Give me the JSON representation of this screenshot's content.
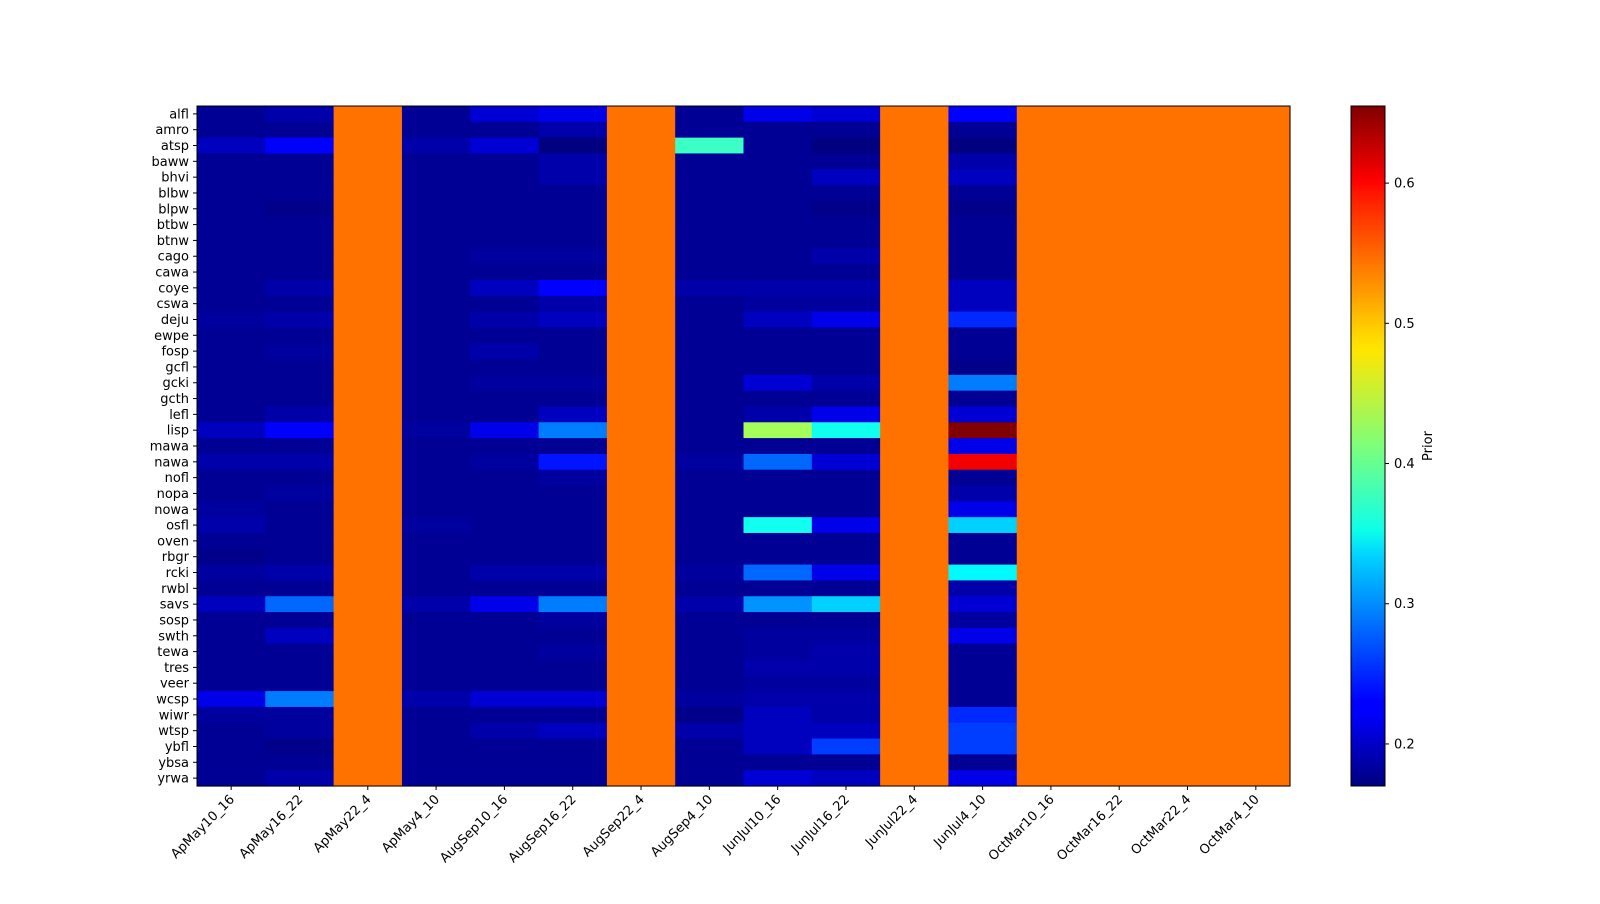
{
  "chart_data": {
    "type": "heatmap",
    "title": "",
    "xlabel": "",
    "ylabel": "",
    "colormap": "jet",
    "colorbar": {
      "label": "Prior",
      "vmin": 0.17,
      "vmax": 0.655,
      "ticks": [
        "0.2",
        "0.3",
        "0.4",
        "0.5",
        "0.6"
      ]
    },
    "x_labels": [
      "ApMay10_16",
      "ApMay16_22",
      "ApMay22_4",
      "ApMay4_10",
      "AugSep10_16",
      "AugSep16_22",
      "AugSep22_4",
      "AugSep4_10",
      "JunJul10_16",
      "JunJul16_22",
      "JunJul22_4",
      "JunJul4_10",
      "OctMar10_16",
      "OctMar16_22",
      "OctMar22_4",
      "OctMar4_10"
    ],
    "y_labels": [
      "alfl",
      "amro",
      "atsp",
      "baww",
      "bhvi",
      "blbw",
      "blpw",
      "btbw",
      "btnw",
      "cago",
      "cawa",
      "coye",
      "cswa",
      "deju",
      "ewpe",
      "fosp",
      "gcfl",
      "gcki",
      "gcth",
      "lefl",
      "lisp",
      "mawa",
      "nawa",
      "nofl",
      "nopa",
      "nowa",
      "osfl",
      "oven",
      "rbgr",
      "rcki",
      "rwbl",
      "savs",
      "sosp",
      "swth",
      "tewa",
      "tres",
      "veer",
      "wcsp",
      "wiwr",
      "wtsp",
      "ybfl",
      "ybsa",
      "yrwa"
    ],
    "values": [
      [
        0.18,
        0.19,
        0.54,
        0.18,
        0.21,
        0.22,
        0.54,
        0.18,
        0.22,
        0.21,
        0.54,
        0.23,
        0.54,
        0.54,
        0.54,
        0.54
      ],
      [
        0.18,
        0.18,
        0.54,
        0.18,
        0.18,
        0.19,
        0.54,
        0.18,
        0.18,
        0.18,
        0.54,
        0.18,
        0.54,
        0.54,
        0.54,
        0.54
      ],
      [
        0.2,
        0.23,
        0.54,
        0.19,
        0.21,
        0.17,
        0.54,
        0.38,
        0.18,
        0.17,
        0.54,
        0.17,
        0.54,
        0.54,
        0.54,
        0.54
      ],
      [
        0.18,
        0.18,
        0.54,
        0.18,
        0.18,
        0.19,
        0.54,
        0.18,
        0.18,
        0.18,
        0.54,
        0.19,
        0.54,
        0.54,
        0.54,
        0.54
      ],
      [
        0.18,
        0.18,
        0.54,
        0.18,
        0.18,
        0.19,
        0.54,
        0.18,
        0.18,
        0.2,
        0.54,
        0.2,
        0.54,
        0.54,
        0.54,
        0.54
      ],
      [
        0.18,
        0.18,
        0.54,
        0.18,
        0.18,
        0.18,
        0.54,
        0.18,
        0.18,
        0.18,
        0.54,
        0.18,
        0.54,
        0.54,
        0.54,
        0.54
      ],
      [
        0.18,
        0.175,
        0.54,
        0.18,
        0.18,
        0.18,
        0.54,
        0.18,
        0.18,
        0.175,
        0.54,
        0.175,
        0.54,
        0.54,
        0.54,
        0.54
      ],
      [
        0.18,
        0.18,
        0.54,
        0.18,
        0.18,
        0.18,
        0.54,
        0.18,
        0.18,
        0.18,
        0.54,
        0.18,
        0.54,
        0.54,
        0.54,
        0.54
      ],
      [
        0.18,
        0.18,
        0.54,
        0.18,
        0.18,
        0.18,
        0.54,
        0.18,
        0.18,
        0.18,
        0.54,
        0.18,
        0.54,
        0.54,
        0.54,
        0.54
      ],
      [
        0.18,
        0.18,
        0.54,
        0.18,
        0.185,
        0.185,
        0.54,
        0.18,
        0.18,
        0.19,
        0.54,
        0.18,
        0.54,
        0.54,
        0.54,
        0.54
      ],
      [
        0.18,
        0.18,
        0.54,
        0.18,
        0.18,
        0.18,
        0.54,
        0.18,
        0.18,
        0.18,
        0.54,
        0.18,
        0.54,
        0.54,
        0.54,
        0.54
      ],
      [
        0.18,
        0.19,
        0.54,
        0.18,
        0.2,
        0.23,
        0.54,
        0.19,
        0.19,
        0.19,
        0.54,
        0.2,
        0.54,
        0.54,
        0.54,
        0.54
      ],
      [
        0.18,
        0.18,
        0.54,
        0.18,
        0.18,
        0.19,
        0.54,
        0.18,
        0.185,
        0.185,
        0.54,
        0.2,
        0.54,
        0.54,
        0.54,
        0.54
      ],
      [
        0.185,
        0.19,
        0.54,
        0.18,
        0.19,
        0.2,
        0.54,
        0.18,
        0.2,
        0.22,
        0.54,
        0.25,
        0.54,
        0.54,
        0.54,
        0.54
      ],
      [
        0.18,
        0.18,
        0.54,
        0.18,
        0.18,
        0.18,
        0.54,
        0.18,
        0.18,
        0.18,
        0.54,
        0.18,
        0.54,
        0.54,
        0.54,
        0.54
      ],
      [
        0.18,
        0.185,
        0.54,
        0.18,
        0.19,
        0.18,
        0.54,
        0.18,
        0.18,
        0.18,
        0.54,
        0.18,
        0.54,
        0.54,
        0.54,
        0.54
      ],
      [
        0.18,
        0.18,
        0.54,
        0.18,
        0.18,
        0.18,
        0.54,
        0.18,
        0.18,
        0.18,
        0.54,
        0.175,
        0.54,
        0.54,
        0.54,
        0.54
      ],
      [
        0.18,
        0.18,
        0.54,
        0.18,
        0.185,
        0.185,
        0.54,
        0.18,
        0.21,
        0.19,
        0.54,
        0.29,
        0.54,
        0.54,
        0.54,
        0.54
      ],
      [
        0.18,
        0.18,
        0.54,
        0.18,
        0.18,
        0.18,
        0.54,
        0.18,
        0.18,
        0.18,
        0.54,
        0.18,
        0.54,
        0.54,
        0.54,
        0.54
      ],
      [
        0.18,
        0.19,
        0.54,
        0.18,
        0.18,
        0.2,
        0.54,
        0.18,
        0.19,
        0.22,
        0.54,
        0.21,
        0.54,
        0.54,
        0.54,
        0.54
      ],
      [
        0.2,
        0.23,
        0.54,
        0.185,
        0.22,
        0.29,
        0.54,
        0.18,
        0.43,
        0.36,
        0.54,
        0.655,
        0.54,
        0.54,
        0.54,
        0.54
      ],
      [
        0.18,
        0.18,
        0.54,
        0.18,
        0.18,
        0.18,
        0.54,
        0.18,
        0.18,
        0.18,
        0.54,
        0.22,
        0.54,
        0.54,
        0.54,
        0.54
      ],
      [
        0.19,
        0.19,
        0.54,
        0.18,
        0.185,
        0.24,
        0.54,
        0.185,
        0.28,
        0.21,
        0.54,
        0.6,
        0.54,
        0.54,
        0.54,
        0.54
      ],
      [
        0.18,
        0.18,
        0.54,
        0.18,
        0.18,
        0.185,
        0.54,
        0.18,
        0.18,
        0.18,
        0.54,
        0.18,
        0.54,
        0.54,
        0.54,
        0.54
      ],
      [
        0.18,
        0.185,
        0.54,
        0.18,
        0.18,
        0.18,
        0.54,
        0.18,
        0.18,
        0.18,
        0.54,
        0.19,
        0.54,
        0.54,
        0.54,
        0.54
      ],
      [
        0.185,
        0.18,
        0.54,
        0.18,
        0.18,
        0.18,
        0.54,
        0.18,
        0.18,
        0.18,
        0.54,
        0.22,
        0.54,
        0.54,
        0.54,
        0.54
      ],
      [
        0.19,
        0.18,
        0.54,
        0.185,
        0.18,
        0.18,
        0.54,
        0.18,
        0.36,
        0.22,
        0.54,
        0.33,
        0.54,
        0.54,
        0.54,
        0.54
      ],
      [
        0.18,
        0.18,
        0.54,
        0.18,
        0.18,
        0.18,
        0.54,
        0.18,
        0.18,
        0.18,
        0.54,
        0.18,
        0.54,
        0.54,
        0.54,
        0.54
      ],
      [
        0.175,
        0.18,
        0.54,
        0.18,
        0.18,
        0.18,
        0.54,
        0.18,
        0.18,
        0.18,
        0.54,
        0.18,
        0.54,
        0.54,
        0.54,
        0.54
      ],
      [
        0.185,
        0.19,
        0.54,
        0.18,
        0.19,
        0.19,
        0.54,
        0.185,
        0.28,
        0.22,
        0.54,
        0.35,
        0.54,
        0.54,
        0.54,
        0.54
      ],
      [
        0.18,
        0.18,
        0.54,
        0.18,
        0.18,
        0.18,
        0.54,
        0.18,
        0.18,
        0.18,
        0.54,
        0.19,
        0.54,
        0.54,
        0.54,
        0.54
      ],
      [
        0.2,
        0.28,
        0.54,
        0.19,
        0.22,
        0.29,
        0.54,
        0.19,
        0.3,
        0.33,
        0.54,
        0.21,
        0.54,
        0.54,
        0.54,
        0.54
      ],
      [
        0.18,
        0.18,
        0.54,
        0.18,
        0.18,
        0.185,
        0.54,
        0.18,
        0.18,
        0.18,
        0.54,
        0.185,
        0.54,
        0.54,
        0.54,
        0.54
      ],
      [
        0.18,
        0.2,
        0.54,
        0.18,
        0.18,
        0.18,
        0.54,
        0.18,
        0.185,
        0.185,
        0.54,
        0.22,
        0.54,
        0.54,
        0.54,
        0.54
      ],
      [
        0.18,
        0.18,
        0.54,
        0.18,
        0.18,
        0.185,
        0.54,
        0.18,
        0.185,
        0.19,
        0.54,
        0.18,
        0.54,
        0.54,
        0.54,
        0.54
      ],
      [
        0.18,
        0.18,
        0.54,
        0.18,
        0.18,
        0.18,
        0.54,
        0.18,
        0.19,
        0.19,
        0.54,
        0.18,
        0.54,
        0.54,
        0.54,
        0.54
      ],
      [
        0.18,
        0.18,
        0.54,
        0.18,
        0.18,
        0.18,
        0.54,
        0.18,
        0.185,
        0.185,
        0.54,
        0.18,
        0.54,
        0.54,
        0.54,
        0.54
      ],
      [
        0.22,
        0.29,
        0.54,
        0.19,
        0.21,
        0.21,
        0.54,
        0.185,
        0.19,
        0.19,
        0.54,
        0.18,
        0.54,
        0.54,
        0.54,
        0.54
      ],
      [
        0.185,
        0.185,
        0.54,
        0.18,
        0.18,
        0.18,
        0.54,
        0.175,
        0.2,
        0.19,
        0.54,
        0.25,
        0.54,
        0.54,
        0.54,
        0.54
      ],
      [
        0.18,
        0.185,
        0.54,
        0.18,
        0.19,
        0.2,
        0.54,
        0.19,
        0.2,
        0.2,
        0.54,
        0.26,
        0.54,
        0.54,
        0.54,
        0.54
      ],
      [
        0.18,
        0.175,
        0.54,
        0.18,
        0.18,
        0.18,
        0.54,
        0.18,
        0.2,
        0.26,
        0.54,
        0.26,
        0.54,
        0.54,
        0.54,
        0.54
      ],
      [
        0.18,
        0.18,
        0.54,
        0.18,
        0.18,
        0.18,
        0.54,
        0.18,
        0.18,
        0.18,
        0.54,
        0.18,
        0.54,
        0.54,
        0.54,
        0.54
      ],
      [
        0.18,
        0.19,
        0.54,
        0.18,
        0.18,
        0.18,
        0.54,
        0.18,
        0.21,
        0.2,
        0.54,
        0.22,
        0.54,
        0.54,
        0.54,
        0.54
      ]
    ]
  }
}
